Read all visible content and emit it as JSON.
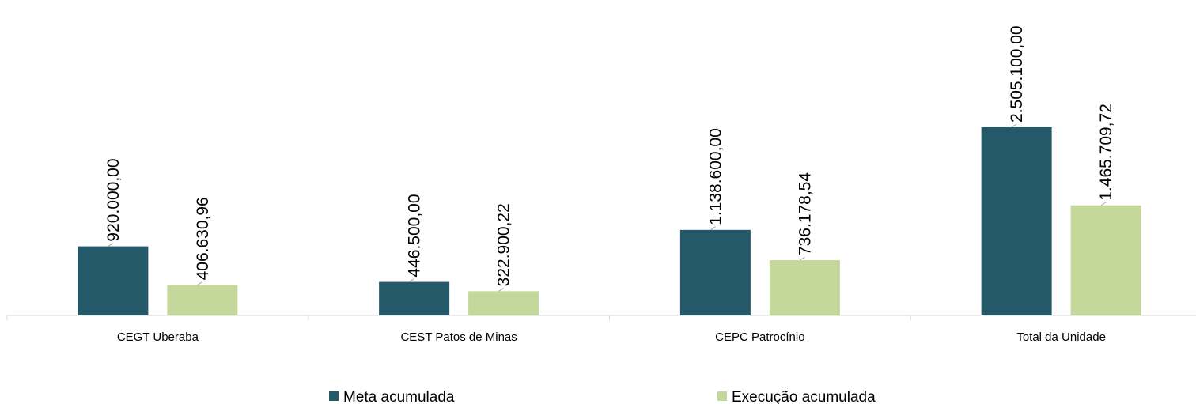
{
  "chart_data": {
    "type": "bar",
    "categories": [
      "CEGT Uberaba",
      "CEST Patos de Minas",
      "CEPC Patrocínio",
      "Total da Unidade"
    ],
    "series": [
      {
        "name": "Meta acumulada",
        "color": "#235968",
        "values": [
          920000,
          446500,
          1138600,
          2505100
        ],
        "value_labels": [
          "920.000,00",
          "446.500,00",
          "1.138.600,00",
          "2.505.100,00"
        ]
      },
      {
        "name": "Execução acumulada",
        "color": "#c5d89b",
        "values": [
          406630.96,
          322900.22,
          736178.54,
          1465709.72
        ],
        "value_labels": [
          "406.630,96",
          "322.900,22",
          "736.178,54",
          "1.465.709,72"
        ]
      }
    ],
    "legend": "bottom"
  }
}
